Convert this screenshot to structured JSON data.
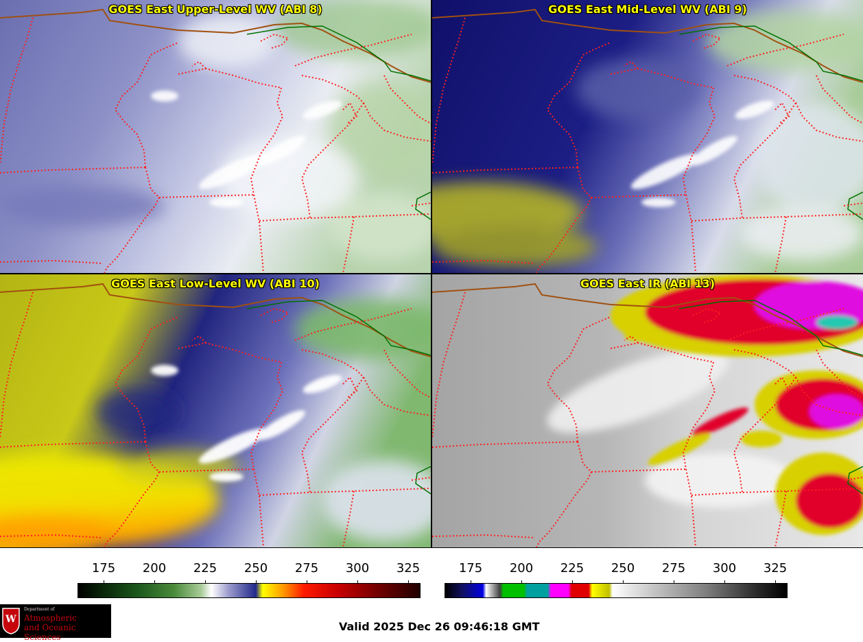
{
  "panels": [
    {
      "title": "GOES East Upper-Level WV (ABI 8)"
    },
    {
      "title": "GOES East Mid-Level WV (ABI 9)"
    },
    {
      "title": "GOES East Low-Level WV (ABI 10)"
    },
    {
      "title": "GOES East IR (ABI 13)"
    }
  ],
  "colorbars": {
    "wv": {
      "ticks": [
        "175",
        "200",
        "225",
        "250",
        "275",
        "300",
        "325"
      ]
    },
    "ir": {
      "ticks": [
        "175",
        "200",
        "225",
        "250",
        "275",
        "300",
        "325"
      ]
    }
  },
  "logo": {
    "dept": "Department of",
    "line1": "Atmospheric",
    "line2": "and Oceanic Sciences",
    "crest_letter": "W"
  },
  "valid_time": "Valid 2025 Dec 26 09:46:18 GMT",
  "colors": {
    "border_state": "#ff2020",
    "border_country": "#a05010",
    "coast": "#007000",
    "title_text": "#ffff00"
  }
}
